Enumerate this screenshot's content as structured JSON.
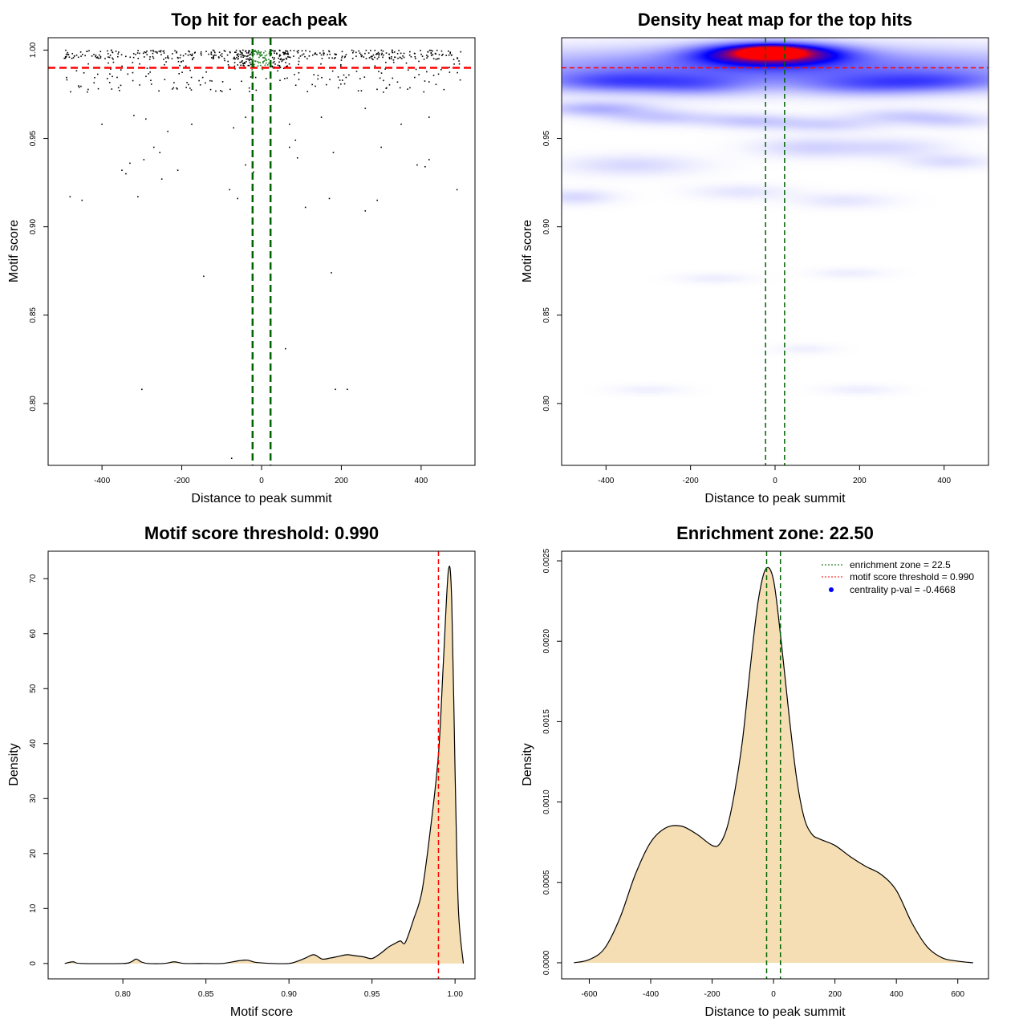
{
  "chart_data": [
    {
      "type": "scatter",
      "title": "Top hit for each peak",
      "xlabel": "Distance to peak summit",
      "ylabel": "Motif score",
      "xlim": [
        -535,
        535
      ],
      "ylim": [
        0.765,
        1.007
      ],
      "xticks": [
        -400,
        -200,
        0,
        200,
        400
      ],
      "yticks": [
        0.8,
        0.85,
        0.9,
        0.95,
        1.0
      ],
      "ytick_labels": [
        "0.80",
        "0.85",
        "0.90",
        "0.95",
        "1.00"
      ],
      "grid": false,
      "hlines": [
        {
          "y": 0.99,
          "color": "#ff0000",
          "style": "dashed"
        }
      ],
      "vlines": [
        {
          "x": -22.5,
          "color": "#006400",
          "style": "dashed"
        },
        {
          "x": 22.5,
          "color": "#006400",
          "style": "dashed"
        }
      ],
      "points": [
        [
          -480,
          0.917
        ],
        [
          -450,
          0.915
        ],
        [
          -340,
          0.93
        ],
        [
          -310,
          0.917
        ],
        [
          -295,
          0.938
        ],
        [
          -250,
          0.927
        ],
        [
          -210,
          0.932
        ],
        [
          -145,
          0.872
        ],
        [
          -80,
          0.921
        ],
        [
          -60,
          0.916
        ],
        [
          60,
          0.831
        ],
        [
          110,
          0.911
        ],
        [
          170,
          0.916
        ],
        [
          175,
          0.874
        ],
        [
          260,
          0.909
        ],
        [
          290,
          0.915
        ],
        [
          490,
          0.921
        ],
        [
          -300,
          0.808
        ],
        [
          185,
          0.808
        ],
        [
          215,
          0.808
        ],
        [
          -75,
          0.769
        ],
        [
          -400,
          0.958
        ],
        [
          -320,
          0.963
        ],
        [
          -290,
          0.961
        ],
        [
          -235,
          0.954
        ],
        [
          -175,
          0.958
        ],
        [
          -70,
          0.956
        ],
        [
          -40,
          0.962
        ],
        [
          70,
          0.958
        ],
        [
          150,
          0.962
        ],
        [
          260,
          0.967
        ],
        [
          350,
          0.958
        ],
        [
          420,
          0.962
        ],
        [
          -350,
          0.932
        ],
        [
          -330,
          0.936
        ],
        [
          -270,
          0.945
        ],
        [
          -255,
          0.942
        ],
        [
          -40,
          0.935
        ],
        [
          -20,
          0.931
        ],
        [
          70,
          0.945
        ],
        [
          85,
          0.949
        ],
        [
          90,
          0.939
        ],
        [
          180,
          0.942
        ],
        [
          300,
          0.945
        ],
        [
          390,
          0.935
        ],
        [
          410,
          0.934
        ],
        [
          420,
          0.938
        ]
      ],
      "dense_band": {
        "y_range": [
          0.976,
          1.0
        ],
        "x_range": [
          -495,
          500
        ],
        "central_cluster_y": [
          0.99,
          1.0
        ]
      }
    },
    {
      "type": "heatmap",
      "title": "Density heat map for the top hits",
      "xlabel": "Distance to peak summit",
      "ylabel": "Motif score",
      "xlim": [
        -505,
        505
      ],
      "ylim": [
        0.765,
        1.007
      ],
      "xticks": [
        -400,
        -200,
        0,
        200,
        400
      ],
      "yticks": [
        0.8,
        0.85,
        0.9,
        0.95
      ],
      "ytick_labels": [
        "0.80",
        "0.85",
        "0.90",
        "0.95"
      ],
      "colors": {
        "low": "#ffffff",
        "mid": "#0000ff",
        "high": "#ff0000"
      },
      "hlines": [
        {
          "y": 0.99,
          "color": "#ff0000",
          "style": "dashed"
        }
      ],
      "vlines": [
        {
          "x": -22.5,
          "color": "#006400",
          "style": "dashed"
        },
        {
          "x": 22.5,
          "color": "#006400",
          "style": "dashed"
        }
      ],
      "hotspots": [
        {
          "x": -10,
          "y": 0.998,
          "sx": 110,
          "sy": 0.004,
          "w": 1.0
        },
        {
          "x": -10,
          "y": 0.999,
          "sx": 45,
          "sy": 0.002,
          "w": 1.2
        },
        {
          "x": 0,
          "y": 0.99,
          "sx": 500,
          "sy": 0.008,
          "w": 0.35
        },
        {
          "x": -380,
          "y": 0.982,
          "sx": 120,
          "sy": 0.004,
          "w": 0.28
        },
        {
          "x": 380,
          "y": 0.982,
          "sx": 120,
          "sy": 0.004,
          "w": 0.24
        },
        {
          "x": -180,
          "y": 0.98,
          "sx": 90,
          "sy": 0.004,
          "w": 0.18
        },
        {
          "x": 200,
          "y": 0.98,
          "sx": 110,
          "sy": 0.004,
          "w": 0.18
        },
        {
          "x": -420,
          "y": 0.967,
          "sx": 90,
          "sy": 0.003,
          "w": 0.18
        },
        {
          "x": -270,
          "y": 0.962,
          "sx": 90,
          "sy": 0.003,
          "w": 0.12
        },
        {
          "x": -60,
          "y": 0.96,
          "sx": 80,
          "sy": 0.003,
          "w": 0.12
        },
        {
          "x": 120,
          "y": 0.958,
          "sx": 90,
          "sy": 0.003,
          "w": 0.1
        },
        {
          "x": 300,
          "y": 0.963,
          "sx": 90,
          "sy": 0.003,
          "w": 0.1
        },
        {
          "x": 420,
          "y": 0.96,
          "sx": 80,
          "sy": 0.003,
          "w": 0.09
        },
        {
          "x": -340,
          "y": 0.935,
          "sx": 110,
          "sy": 0.004,
          "w": 0.09
        },
        {
          "x": 80,
          "y": 0.945,
          "sx": 90,
          "sy": 0.004,
          "w": 0.1
        },
        {
          "x": 280,
          "y": 0.945,
          "sx": 90,
          "sy": 0.004,
          "w": 0.08
        },
        {
          "x": 410,
          "y": 0.937,
          "sx": 70,
          "sy": 0.003,
          "w": 0.08
        },
        {
          "x": -470,
          "y": 0.917,
          "sx": 60,
          "sy": 0.003,
          "w": 0.09
        },
        {
          "x": -80,
          "y": 0.92,
          "sx": 80,
          "sy": 0.003,
          "w": 0.06
        },
        {
          "x": 160,
          "y": 0.915,
          "sx": 80,
          "sy": 0.003,
          "w": 0.06
        },
        {
          "x": -145,
          "y": 0.871,
          "sx": 60,
          "sy": 0.002,
          "w": 0.04
        },
        {
          "x": 175,
          "y": 0.874,
          "sx": 60,
          "sy": 0.002,
          "w": 0.04
        },
        {
          "x": 70,
          "y": 0.831,
          "sx": 50,
          "sy": 0.002,
          "w": 0.035
        },
        {
          "x": -300,
          "y": 0.808,
          "sx": 60,
          "sy": 0.002,
          "w": 0.035
        },
        {
          "x": 200,
          "y": 0.808,
          "sx": 60,
          "sy": 0.002,
          "w": 0.04
        }
      ]
    },
    {
      "type": "area",
      "title": "Motif score threshold: 0.990",
      "xlabel": "Motif score",
      "ylabel": "Density",
      "xlim": [
        0.755,
        1.012
      ],
      "ylim": [
        -2.8,
        75
      ],
      "xticks": [
        0.8,
        0.85,
        0.9,
        0.95,
        1.0
      ],
      "xtick_labels": [
        "0.80",
        "0.85",
        "0.90",
        "0.95",
        "1.00"
      ],
      "yticks": [
        0,
        10,
        20,
        30,
        40,
        50,
        60,
        70
      ],
      "fill": "#f5deb3",
      "vlines": [
        {
          "x": 0.99,
          "color": "#ff0000",
          "style": "dashed"
        }
      ],
      "x": [
        0.765,
        0.77,
        0.775,
        0.8,
        0.805,
        0.808,
        0.811,
        0.815,
        0.825,
        0.831,
        0.837,
        0.85,
        0.86,
        0.87,
        0.875,
        0.88,
        0.89,
        0.9,
        0.905,
        0.91,
        0.915,
        0.92,
        0.925,
        0.93,
        0.935,
        0.94,
        0.945,
        0.95,
        0.955,
        0.96,
        0.963,
        0.967,
        0.97,
        0.975,
        0.98,
        0.985,
        0.99,
        0.993,
        0.996,
        0.998,
        1.0,
        1.002,
        1.005
      ],
      "y": [
        0,
        0.3,
        0,
        0,
        0.3,
        0.8,
        0.3,
        0,
        0,
        0.3,
        0,
        0,
        0,
        0.5,
        0.6,
        0.2,
        0,
        0,
        0.4,
        1.0,
        1.6,
        0.8,
        1.0,
        1.3,
        1.6,
        1.4,
        1.2,
        0.9,
        1.8,
        3.0,
        3.5,
        4.1,
        3.8,
        8.0,
        13.0,
        24.0,
        38.0,
        55.0,
        71.5,
        66.0,
        35.0,
        10.0,
        0
      ]
    },
    {
      "type": "area",
      "title": "Enrichment zone: 22.50",
      "xlabel": "Distance to peak summit",
      "ylabel": "Density",
      "xlim": [
        -690,
        700
      ],
      "ylim": [
        -0.0001,
        0.00256
      ],
      "xticks": [
        -600,
        -400,
        -200,
        0,
        200,
        400,
        600
      ],
      "yticks": [
        0,
        0.0005,
        0.001,
        0.0015,
        0.002,
        0.0025
      ],
      "ytick_labels": [
        "0.0000",
        "0.0005",
        "0.0010",
        "0.0015",
        "0.0020",
        "0.0025"
      ],
      "fill": "#f5deb3",
      "vlines": [
        {
          "x": -22.5,
          "color": "#006400",
          "style": "dashed"
        },
        {
          "x": 22.5,
          "color": "#006400",
          "style": "dashed"
        }
      ],
      "x": [
        -650,
        -600,
        -550,
        -500,
        -450,
        -400,
        -350,
        -300,
        -250,
        -200,
        -175,
        -150,
        -125,
        -100,
        -75,
        -50,
        -25,
        0,
        25,
        50,
        75,
        100,
        125,
        150,
        200,
        250,
        300,
        350,
        400,
        450,
        500,
        550,
        600,
        650
      ],
      "y": [
        0,
        2e-05,
        9e-05,
        0.00028,
        0.00055,
        0.00075,
        0.00084,
        0.00085,
        0.0008,
        0.00073,
        0.00074,
        0.00085,
        0.00108,
        0.0014,
        0.00185,
        0.00225,
        0.00245,
        0.00238,
        0.002,
        0.00155,
        0.00115,
        0.0009,
        0.0008,
        0.00077,
        0.00073,
        0.00066,
        0.0006,
        0.00055,
        0.00045,
        0.00025,
        0.0001,
        3e-05,
        1e-05,
        0
      ],
      "legend": {
        "placement": "top-right",
        "entries": [
          {
            "label": "enrichment zone = 22.5",
            "color": "#006400",
            "style": "dotted-line"
          },
          {
            "label": "motif score threshold = 0.990",
            "color": "#ff0000",
            "style": "dotted-line"
          },
          {
            "label": "centrality p-val = -0.4668",
            "color": "#0000ff",
            "style": "point"
          }
        ]
      }
    }
  ]
}
